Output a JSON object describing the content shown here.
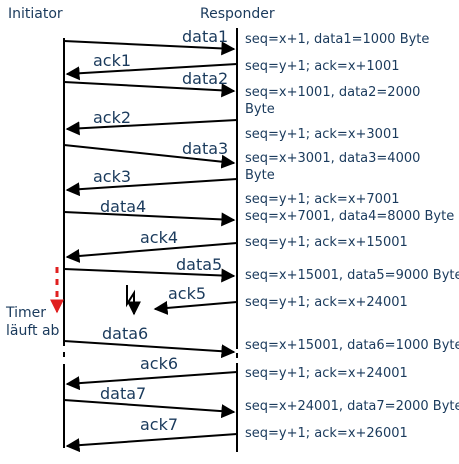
{
  "header": {
    "left": "Initiator",
    "right": "Responder"
  },
  "timer": {
    "line1": "Timer",
    "line2": "läuft ab"
  },
  "messages": [
    {
      "label": "data1",
      "note": "seq=x+1, data1=1000 Byte"
    },
    {
      "label": "ack1",
      "note": "seq=y+1; ack=x+1001"
    },
    {
      "label": "data2",
      "note": "seq=x+1001, data2=2000",
      "note2": "Byte"
    },
    {
      "label": "ack2",
      "note": "seq=y+1; ack=x+3001"
    },
    {
      "label": "data3",
      "note": "seq=x+3001, data3=4000",
      "note2": "Byte"
    },
    {
      "label": "ack3",
      "note": "seq=y+1; ack=x+7001"
    },
    {
      "label": "data4",
      "note": "seq=x+7001, data4=8000 Byte"
    },
    {
      "label": "ack4",
      "note": "seq=y+1; ack=x+15001"
    },
    {
      "label": "data5",
      "note": "seq=x+15001, data5=9000 Byte"
    },
    {
      "label": "ack5",
      "note": "seq=y+1; ack=x+24001"
    },
    {
      "label": "data6",
      "note": "seq=x+15001, data6=1000 Byte"
    },
    {
      "label": "ack6",
      "note": "seq=y+1; ack=x+24001"
    },
    {
      "label": "data7",
      "note": "seq=x+24001, data7=2000 Byte"
    },
    {
      "label": "ack7",
      "note": "seq=y+1; ack=x+26001"
    }
  ],
  "colors": {
    "line": "#000000",
    "text": "#1a3a5c",
    "timer": "#e02020"
  }
}
